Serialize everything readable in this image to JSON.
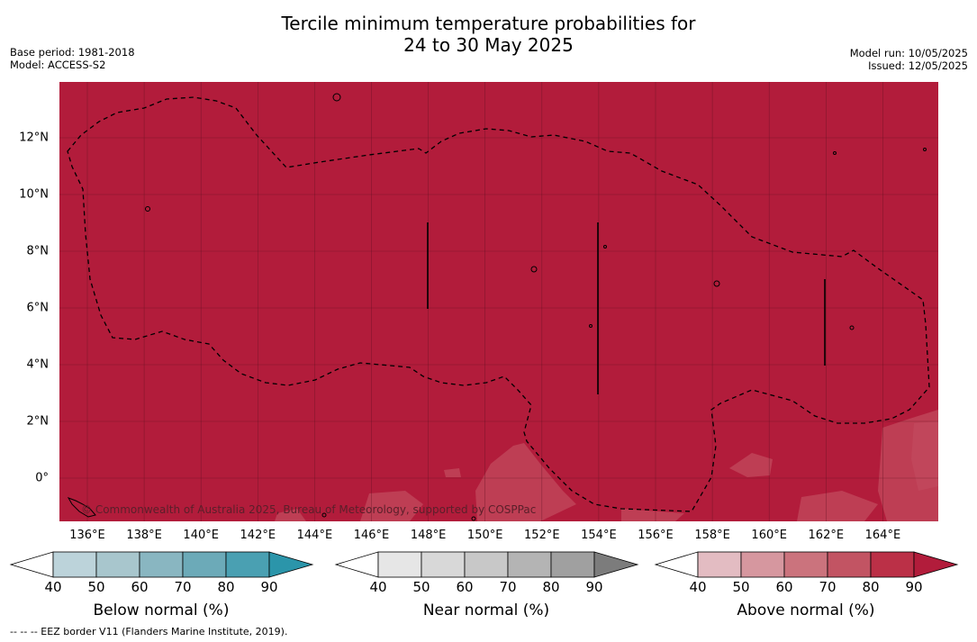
{
  "title_line1": "Tercile minimum temperature probabilities for",
  "title_line2": "24 to 30 May 2025",
  "base_period": "Base period: 1981-2018",
  "model": "Model: ACCESS-S2",
  "model_run": "Model run: 10/05/2025",
  "issued": "Issued: 12/05/2025",
  "copyright": "© Commonwealth of Australia 2025, Bureau of Meteorology, supported by COSPPac",
  "footnote": "--  --  -- EEZ border V11 (Flanders Marine Institute, 2019).",
  "map": {
    "fill_color": "#b21c3b",
    "lighter_patch_color": "#c24a5e",
    "lat_labels": [
      "12°N",
      "10°N",
      "8°N",
      "6°N",
      "4°N",
      "2°N",
      "0°"
    ],
    "lon_labels": [
      "136°E",
      "138°E",
      "140°E",
      "142°E",
      "144°E",
      "146°E",
      "148°E",
      "150°E",
      "152°E",
      "154°E",
      "156°E",
      "158°E",
      "160°E",
      "162°E",
      "164°E"
    ]
  },
  "colorbars": [
    {
      "title": "Below normal (%)",
      "ticks": [
        "40",
        "50",
        "60",
        "70",
        "80",
        "90"
      ],
      "colors": [
        "#bcd3da",
        "#a8c6cd",
        "#89b6c1",
        "#6caab8",
        "#4aa0b2",
        "#2b95aa"
      ]
    },
    {
      "title": "Near normal (%)",
      "ticks": [
        "40",
        "50",
        "60",
        "70",
        "80",
        "90"
      ],
      "colors": [
        "#e6e6e6",
        "#d8d8d8",
        "#c8c8c8",
        "#b4b4b4",
        "#a0a0a0",
        "#7c7c7c"
      ]
    },
    {
      "title": "Above normal (%)",
      "ticks": [
        "40",
        "50",
        "60",
        "70",
        "80",
        "90"
      ],
      "colors": [
        "#e3bcc2",
        "#d6979f",
        "#cb737d",
        "#c25463",
        "#bb3047",
        "#b21c3b"
      ]
    }
  ]
}
